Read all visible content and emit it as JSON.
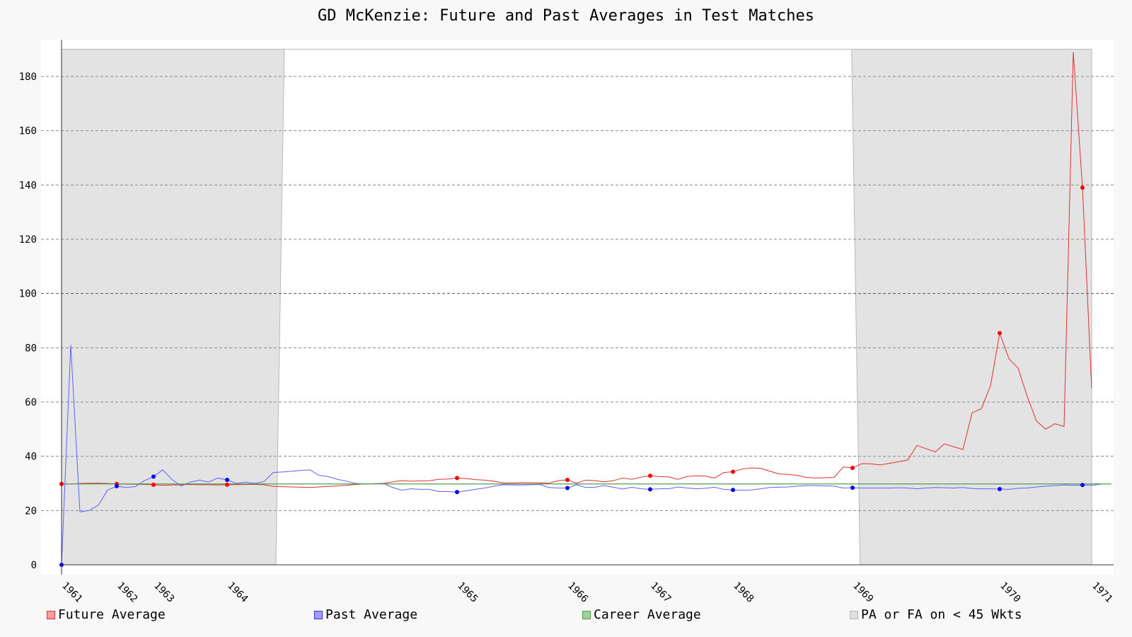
{
  "chart_data": {
    "type": "line",
    "title": "GD McKenzie: Future and Past Averages in Test Matches",
    "xlabel": "",
    "ylabel": "",
    "ylim": [
      0,
      190
    ],
    "y_ticks": [
      0,
      20,
      40,
      60,
      80,
      100,
      120,
      140,
      160,
      180
    ],
    "grid": true,
    "legend_position": "bottom",
    "x_tick_labels": [
      "1961",
      "1962",
      "1963",
      "1964",
      "1965",
      "1966",
      "1967",
      "1968",
      "1969",
      "1970",
      "1971"
    ],
    "x_tick_match_index": [
      0,
      6,
      10,
      18,
      43,
      55,
      64,
      73,
      86,
      102,
      112
    ],
    "shaded_ranges": [
      {
        "name": "PA or FA on < 45 Wkts",
        "from_index": 0,
        "to_index": 23.3
      },
      {
        "name": "PA or FA on < 45 Wkts",
        "from_index": 85.9,
        "to_index": 112
      }
    ],
    "series": [
      {
        "name": "Future Average",
        "color": "#e03030",
        "marker_color": "#ff0000",
        "values": [
          29.8,
          29.8,
          30.0,
          30.1,
          30.1,
          30.0,
          29.8,
          29.7,
          29.7,
          29.6,
          29.5,
          29.3,
          29.4,
          29.5,
          29.6,
          29.5,
          29.5,
          29.4,
          29.5,
          29.5,
          29.6,
          29.6,
          29.5,
          28.9,
          28.8,
          28.7,
          28.6,
          28.5,
          28.7,
          28.9,
          29.1,
          29.3,
          29.6,
          29.8,
          29.9,
          30.0,
          30.6,
          31.0,
          30.8,
          30.9,
          31.0,
          31.5,
          31.6,
          32.0,
          31.8,
          31.4,
          31.2,
          30.8,
          30.2,
          30.2,
          30.3,
          30.3,
          30.2,
          30.1,
          31.0,
          31.3,
          30.1,
          31.2,
          31.0,
          30.6,
          31.0,
          32.0,
          31.5,
          32.3,
          32.8,
          32.5,
          32.4,
          31.5,
          32.5,
          32.8,
          32.7,
          32.0,
          34.0,
          34.3,
          35.3,
          35.7,
          35.6,
          34.5,
          33.5,
          33.3,
          33.0,
          32.2,
          32.0,
          32.1,
          32.2,
          36.1,
          35.7,
          37.3,
          37.2,
          36.8,
          37.4,
          38.0,
          38.6,
          44.0,
          42.8,
          41.6,
          44.6,
          43.5,
          42.5,
          56.0,
          57.5,
          66.0,
          85.4,
          76.0,
          72.5,
          62.0,
          53.0,
          50.0,
          52.0,
          51.0,
          189.0,
          139.0,
          65.0
        ],
        "markers_at_index": [
          0,
          6,
          10,
          18,
          43,
          55,
          64,
          73,
          86,
          102,
          111
        ]
      },
      {
        "name": "Past Average",
        "color": "#6060ff",
        "marker_color": "#0000ff",
        "values": [
          0.0,
          81.0,
          19.5,
          20.0,
          22.0,
          27.5,
          29.0,
          28.5,
          28.8,
          31.0,
          32.5,
          35.0,
          31.5,
          29.0,
          30.5,
          31.2,
          30.5,
          32.0,
          31.3,
          30.0,
          30.5,
          30.0,
          30.7,
          34.0,
          34.2,
          34.5,
          34.8,
          35.0,
          33.0,
          32.5,
          31.5,
          30.8,
          30.0,
          29.8,
          29.9,
          30.0,
          28.5,
          27.5,
          28.0,
          27.8,
          27.8,
          27.0,
          27.0,
          26.8,
          27.3,
          27.8,
          28.3,
          29.0,
          29.5,
          29.4,
          29.4,
          29.5,
          29.6,
          28.5,
          28.3,
          28.3,
          29.5,
          28.5,
          28.6,
          29.2,
          28.6,
          27.9,
          28.6,
          28.0,
          27.8,
          28.0,
          28.0,
          28.7,
          28.3,
          28.0,
          28.2,
          28.6,
          27.8,
          27.6,
          27.5,
          27.6,
          28.0,
          28.5,
          28.6,
          28.7,
          29.0,
          29.2,
          29.2,
          29.1,
          29.0,
          28.3,
          28.4,
          28.3,
          28.3,
          28.3,
          28.3,
          28.4,
          28.3,
          28.0,
          28.3,
          28.5,
          28.4,
          28.3,
          28.5,
          28.1,
          28.0,
          28.0,
          27.9,
          27.8,
          28.2,
          28.3,
          28.7,
          29.0,
          29.2,
          29.4,
          29.3,
          29.4,
          29.3,
          29.7
        ],
        "markers_at_index": [
          0,
          6,
          10,
          18,
          43,
          55,
          64,
          73,
          86,
          102,
          111
        ]
      },
      {
        "name": "Career Average",
        "color": "#50a050",
        "value": 29.8
      }
    ]
  },
  "legend": {
    "items": [
      {
        "label": "Future Average",
        "fill": "#f4a0a0",
        "stroke": "#e03030"
      },
      {
        "label": "Past Average",
        "fill": "#a0a0f4",
        "stroke": "#3030e0"
      },
      {
        "label": "Career Average",
        "fill": "#a0d0a0",
        "stroke": "#50a050"
      },
      {
        "label": "PA or FA on < 45 Wkts",
        "fill": "#e0e0e0",
        "stroke": "#b8b8b8"
      }
    ]
  }
}
